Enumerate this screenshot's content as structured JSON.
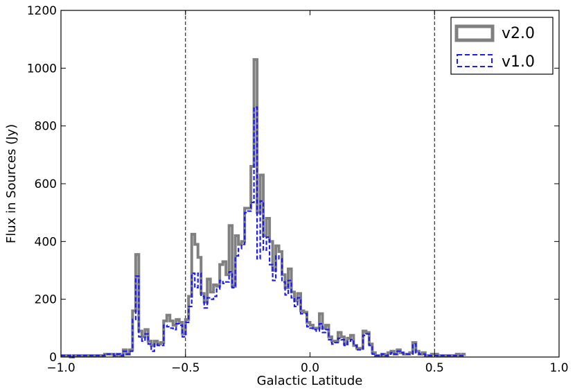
{
  "chart_data": {
    "type": "line",
    "title": "",
    "xlabel": "Galactic Latitude",
    "ylabel": "Flux in Sources (Jy)",
    "xlim": [
      -1.0,
      1.0
    ],
    "ylim": [
      0,
      1200
    ],
    "x_ticks": [
      -1.0,
      -0.5,
      0.0,
      0.5,
      1.0
    ],
    "x_tick_labels": [
      "−1.0",
      "−0.5",
      "0.0",
      "0.5",
      "1.0"
    ],
    "y_ticks": [
      0,
      200,
      400,
      600,
      800,
      1000,
      1200
    ],
    "y_tick_labels": [
      "0",
      "200",
      "400",
      "600",
      "800",
      "1000",
      "1200"
    ],
    "grid": false,
    "legend_position": "top-right",
    "vlines": [
      -0.5,
      0.5
    ],
    "bin_edges_start": -1.0,
    "bin_width": 0.0125,
    "series": [
      {
        "name": "v2.0",
        "style": "solid",
        "color": "#808080",
        "values": [
          5,
          5,
          5,
          0,
          5,
          5,
          5,
          5,
          5,
          5,
          5,
          5,
          5,
          5,
          10,
          10,
          10,
          5,
          10,
          5,
          25,
          10,
          25,
          160,
          355,
          90,
          70,
          95,
          55,
          40,
          55,
          45,
          50,
          125,
          145,
          125,
          110,
          130,
          120,
          80,
          130,
          210,
          425,
          390,
          345,
          220,
          190,
          270,
          225,
          250,
          245,
          320,
          330,
          285,
          455,
          245,
          420,
          390,
          400,
          515,
          515,
          660,
          1030,
          500,
          630,
          420,
          480,
          400,
          300,
          385,
          365,
          285,
          240,
          305,
          225,
          195,
          220,
          160,
          155,
          120,
          110,
          100,
          100,
          150,
          100,
          110,
          70,
          55,
          55,
          85,
          70,
          45,
          65,
          75,
          40,
          30,
          30,
          90,
          85,
          45,
          15,
          5,
          5,
          10,
          5,
          15,
          20,
          10,
          25,
          15,
          10,
          10,
          15,
          50,
          20,
          10,
          15,
          5,
          5,
          10,
          10,
          5,
          5,
          5,
          5,
          5,
          5,
          10,
          5,
          10
        ]
      },
      {
        "name": "v1.0",
        "style": "dashed",
        "color": "#1a1aff",
        "values": [
          5,
          5,
          5,
          0,
          5,
          5,
          5,
          5,
          5,
          5,
          5,
          5,
          5,
          5,
          10,
          10,
          10,
          5,
          10,
          5,
          20,
          10,
          20,
          130,
          280,
          70,
          55,
          80,
          45,
          20,
          45,
          40,
          40,
          110,
          105,
          100,
          95,
          115,
          110,
          70,
          120,
          175,
          290,
          240,
          290,
          210,
          170,
          205,
          200,
          210,
          235,
          265,
          255,
          260,
          295,
          240,
          350,
          375,
          390,
          500,
          505,
          535,
          865,
          340,
          540,
          370,
          415,
          320,
          265,
          350,
          340,
          260,
          215,
          265,
          205,
          175,
          205,
          150,
          150,
          105,
          100,
          95,
          90,
          115,
          85,
          95,
          60,
          45,
          50,
          65,
          60,
          40,
          55,
          60,
          40,
          25,
          25,
          75,
          80,
          40,
          10,
          5,
          5,
          10,
          5,
          10,
          15,
          10,
          20,
          15,
          10,
          10,
          10,
          45,
          15,
          10,
          10,
          5,
          5,
          5,
          5,
          5,
          5,
          5,
          5,
          5,
          5,
          5,
          5,
          5
        ]
      }
    ]
  }
}
